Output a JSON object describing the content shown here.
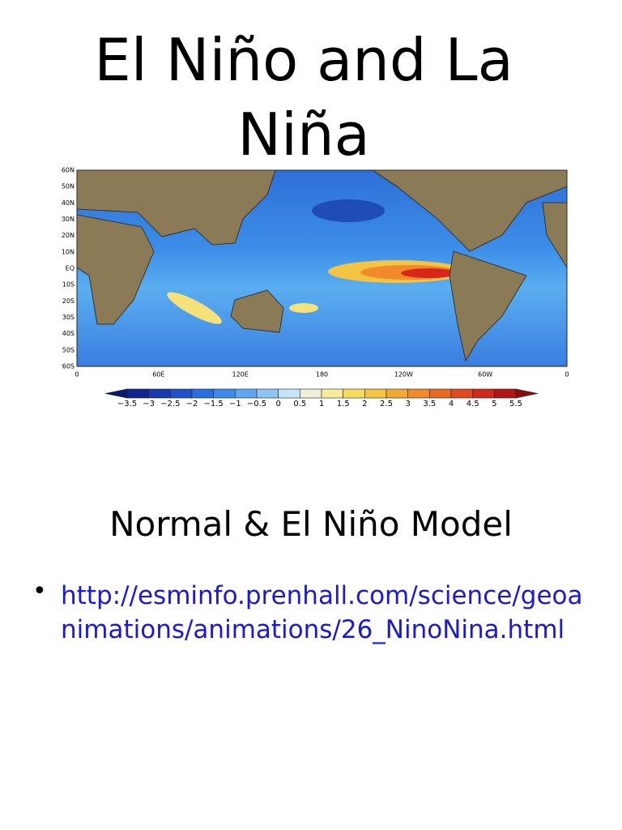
{
  "header": {
    "title": "El Niño and La Niña"
  },
  "figure": {
    "lat_labels": [
      "60N",
      "50N",
      "40N",
      "30N",
      "20N",
      "10N",
      "EQ",
      "10S",
      "20S",
      "30S",
      "40S",
      "50S",
      "60S"
    ],
    "lon_labels": [
      "0",
      "60E",
      "120E",
      "180",
      "120W",
      "60W",
      "0"
    ],
    "colorbar_labels": [
      "−3.5",
      "−3",
      "−2.5",
      "−2",
      "−1.5",
      "−1",
      "−0.5",
      "0",
      "0.5",
      "1",
      "1.5",
      "2",
      "2.5",
      "3",
      "3.5",
      "4",
      "4.5",
      "5",
      "5.5"
    ]
  },
  "body": {
    "subtitle": "Normal & El Niño Model",
    "bullets": [
      "http://esminfo.prenhall.com/science/geoanimations/animations/26_NinoNina.html"
    ]
  }
}
